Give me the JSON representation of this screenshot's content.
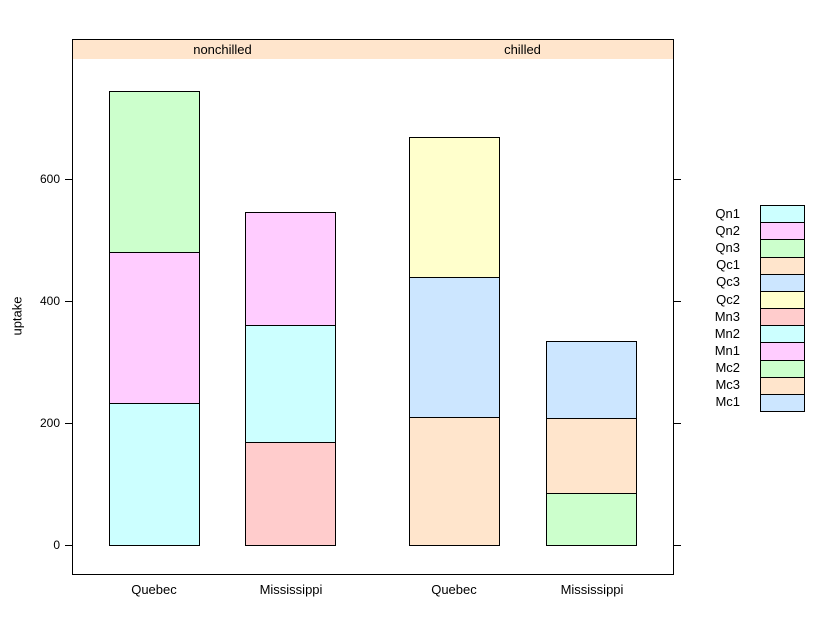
{
  "chart_data": {
    "type": "bar",
    "stacked": true,
    "title": "",
    "xlabel": "",
    "ylabel": "uptake",
    "yticks": [
      0,
      200,
      400,
      600
    ],
    "ylim": [
      -48,
      797
    ],
    "grid": false,
    "legend_position": "right",
    "colors": {
      "strip_background": "#FFE5CC",
      "panel_background": "#FFFFFF",
      "border": "#000000",
      "text": "#000000"
    },
    "panels": [
      {
        "label": "nonchilled",
        "bars": [
          {
            "category": "Quebec",
            "total": 742.0,
            "segments": [
              {
                "name": "Qn1",
                "value": 232.6
              },
              {
                "name": "Qn2",
                "value": 246.1
              },
              {
                "name": "Qn3",
                "value": 263.3
              }
            ]
          },
          {
            "category": "Mississippi",
            "total": 545.0,
            "segments": [
              {
                "name": "Mn3",
                "value": 168.8
              },
              {
                "name": "Mn2",
                "value": 191.4
              },
              {
                "name": "Mn1",
                "value": 184.8
              }
            ]
          }
        ]
      },
      {
        "label": "chilled",
        "bars": [
          {
            "category": "Quebec",
            "total": 666.8,
            "segments": [
              {
                "name": "Qc1",
                "value": 209.8
              },
              {
                "name": "Qc3",
                "value": 228.1
              },
              {
                "name": "Qc2",
                "value": 228.9
              }
            ]
          },
          {
            "category": "Mississippi",
            "total": 332.1,
            "segments": [
              {
                "name": "Mc2",
                "value": 85.0
              },
              {
                "name": "Mc3",
                "value": 121.1
              },
              {
                "name": "Mc1",
                "value": 126.0
              }
            ]
          }
        ]
      }
    ],
    "legend": [
      {
        "label": "Qn1",
        "color": "#CCFFFF"
      },
      {
        "label": "Qn2",
        "color": "#FFCCFF"
      },
      {
        "label": "Qn3",
        "color": "#CCFFCC"
      },
      {
        "label": "Qc1",
        "color": "#FFE5CC"
      },
      {
        "label": "Qc3",
        "color": "#CCE6FF"
      },
      {
        "label": "Qc2",
        "color": "#FFFFCC"
      },
      {
        "label": "Mn3",
        "color": "#FFCCCC"
      },
      {
        "label": "Mn2",
        "color": "#CCFFFF"
      },
      {
        "label": "Mn1",
        "color": "#FFCCFF"
      },
      {
        "label": "Mc2",
        "color": "#CCFFCC"
      },
      {
        "label": "Mc3",
        "color": "#FFE5CC"
      },
      {
        "label": "Mc1",
        "color": "#CCE6FF"
      }
    ]
  }
}
